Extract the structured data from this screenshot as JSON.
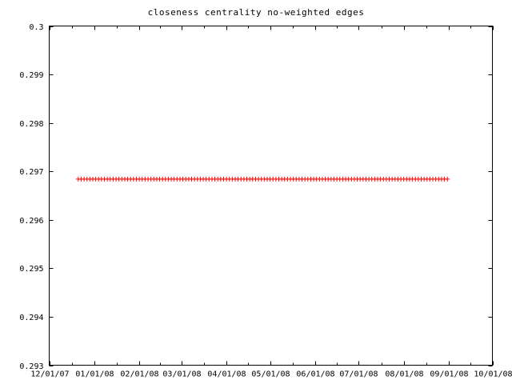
{
  "chart_data": {
    "type": "scatter",
    "title": "closeness centrality no-weighted edges",
    "xlabel": "",
    "ylabel": "",
    "ylim": [
      0.293,
      0.3
    ],
    "y_ticks": [
      "0.3",
      "0.299",
      "0.298",
      "0.297",
      "0.296",
      "0.295",
      "0.294",
      "0.293"
    ],
    "y_tick_values": [
      0.3,
      0.299,
      0.298,
      0.297,
      0.296,
      0.295,
      0.294,
      0.293
    ],
    "x_ticks": [
      "12/01/07",
      "01/01/08",
      "02/01/08",
      "03/01/08",
      "04/01/08",
      "05/01/08",
      "06/01/08",
      "07/01/08",
      "08/01/08",
      "09/01/08",
      "10/01/08"
    ],
    "x_start": "2007-12-01",
    "x_end": "2008-10-01",
    "point_marker": "+",
    "series_color": "#ff0000",
    "series": [
      {
        "x_from": "2007-12-21",
        "x_to": "2008-09-01",
        "interval_days": 2,
        "y": 0.29684
      }
    ],
    "grid": false,
    "legend": "none"
  }
}
